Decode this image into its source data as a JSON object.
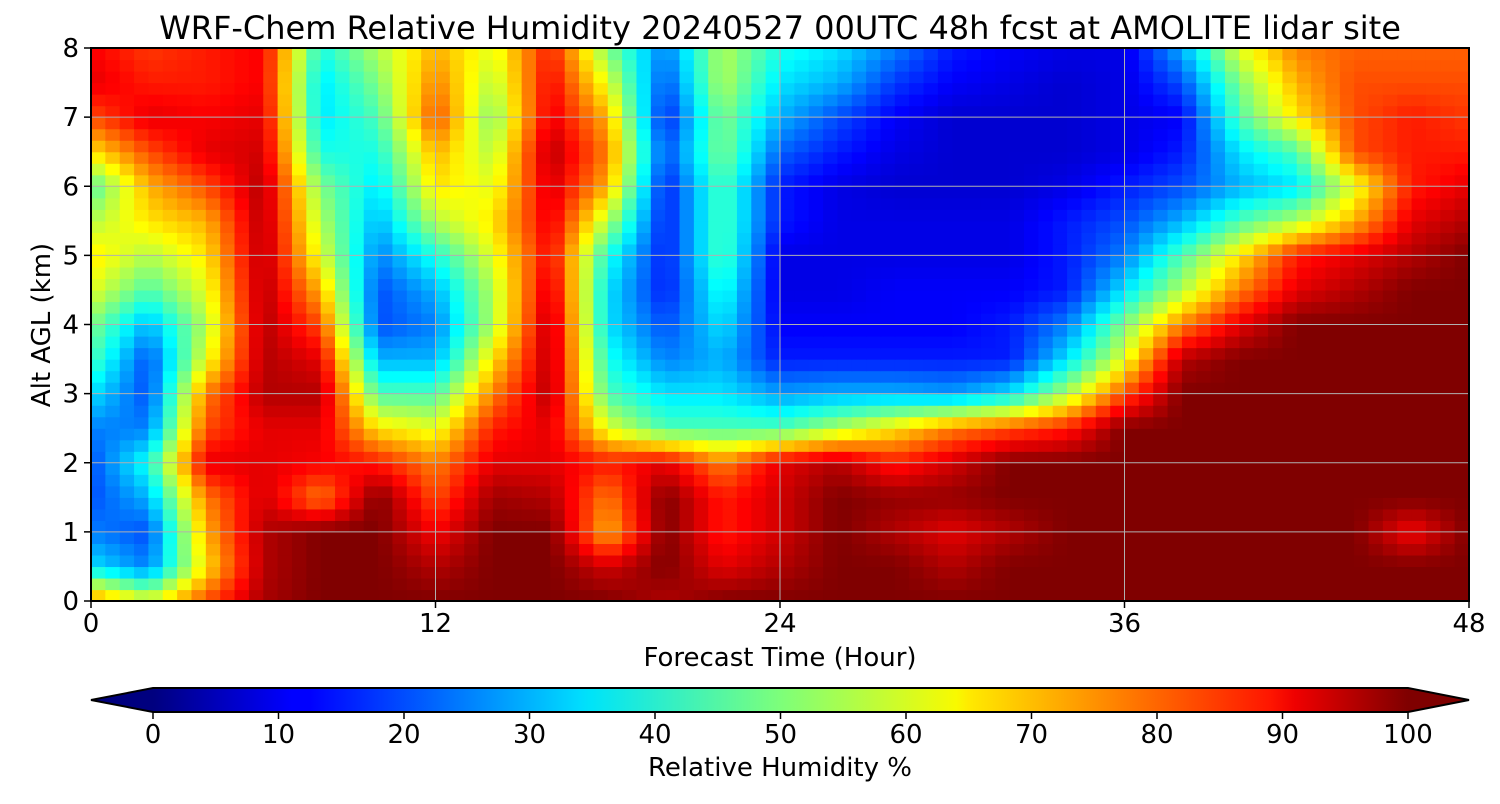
{
  "chart_data": {
    "type": "heatmap",
    "title": "WRF-Chem Relative Humidity 20240527 00UTC 48h fcst at AMOLITE lidar site",
    "xlabel": "Forecast Time (Hour)",
    "ylabel": "Alt AGL (km)",
    "xlim": [
      0,
      48
    ],
    "ylim": [
      0,
      8
    ],
    "x_ticks": [
      "0",
      "12",
      "24",
      "36",
      "48"
    ],
    "y_ticks": [
      "0",
      "1",
      "2",
      "3",
      "4",
      "5",
      "6",
      "7",
      "8"
    ],
    "grid": true,
    "colormap": "jet",
    "colorbar": {
      "label": "Relative Humidity %",
      "range": [
        0,
        100
      ],
      "ticks": [
        "0",
        "10",
        "20",
        "30",
        "40",
        "50",
        "60",
        "70",
        "80",
        "90",
        "100"
      ],
      "extend": "both",
      "orientation": "horizontal"
    },
    "x": [
      0,
      2,
      4,
      6,
      8,
      10,
      12,
      14,
      16,
      18,
      20,
      22,
      24,
      26,
      28,
      30,
      32,
      34,
      36,
      38,
      40,
      42,
      44,
      46,
      48
    ],
    "y": [
      0,
      0.5,
      1,
      1.5,
      2,
      2.5,
      3,
      3.5,
      4,
      4.5,
      5,
      5.5,
      6,
      6.5,
      7,
      7.5,
      8
    ],
    "z": [
      [
        75,
        60,
        80,
        96,
        100,
        100,
        100,
        100,
        100,
        100,
        95,
        100,
        100,
        100,
        100,
        100,
        100,
        100,
        100,
        100,
        100,
        100,
        100,
        100,
        100
      ],
      [
        35,
        25,
        65,
        95,
        100,
        100,
        95,
        100,
        100,
        92,
        100,
        90,
        95,
        100,
        100,
        95,
        100,
        100,
        100,
        100,
        100,
        100,
        100,
        100,
        100
      ],
      [
        25,
        20,
        70,
        95,
        100,
        100,
        88,
        100,
        100,
        70,
        100,
        85,
        92,
        100,
        95,
        90,
        95,
        100,
        100,
        100,
        100,
        100,
        100,
        88,
        100
      ],
      [
        20,
        30,
        75,
        92,
        75,
        100,
        80,
        97,
        95,
        75,
        100,
        85,
        92,
        100,
        98,
        98,
        100,
        100,
        100,
        100,
        100,
        100,
        100,
        100,
        100
      ],
      [
        20,
        40,
        90,
        90,
        88,
        85,
        75,
        90,
        90,
        85,
        90,
        75,
        90,
        95,
        85,
        92,
        100,
        100,
        100,
        100,
        100,
        100,
        100,
        100,
        100
      ],
      [
        25,
        25,
        80,
        90,
        90,
        65,
        60,
        85,
        90,
        60,
        45,
        45,
        45,
        55,
        65,
        75,
        80,
        85,
        100,
        100,
        100,
        100,
        100,
        100,
        100
      ],
      [
        35,
        20,
        75,
        95,
        95,
        45,
        45,
        75,
        95,
        45,
        35,
        35,
        28,
        30,
        30,
        28,
        35,
        55,
        80,
        100,
        100,
        100,
        100,
        100,
        100
      ],
      [
        45,
        20,
        60,
        95,
        90,
        30,
        30,
        65,
        95,
        40,
        25,
        30,
        15,
        15,
        15,
        15,
        15,
        35,
        60,
        95,
        100,
        100,
        100,
        100,
        100
      ],
      [
        50,
        30,
        55,
        95,
        80,
        20,
        25,
        55,
        95,
        35,
        20,
        35,
        12,
        12,
        12,
        12,
        15,
        25,
        50,
        75,
        90,
        100,
        100,
        100,
        100
      ],
      [
        60,
        45,
        60,
        95,
        70,
        20,
        30,
        55,
        92,
        35,
        15,
        40,
        10,
        10,
        12,
        12,
        12,
        15,
        35,
        55,
        75,
        90,
        95,
        100,
        100
      ],
      [
        65,
        55,
        65,
        95,
        60,
        25,
        40,
        60,
        88,
        40,
        15,
        45,
        10,
        10,
        10,
        10,
        10,
        15,
        25,
        45,
        65,
        85,
        90,
        95,
        100
      ],
      [
        55,
        65,
        70,
        95,
        55,
        30,
        55,
        65,
        90,
        55,
        15,
        45,
        15,
        10,
        10,
        10,
        10,
        15,
        20,
        30,
        45,
        55,
        70,
        90,
        95
      ],
      [
        45,
        70,
        80,
        95,
        50,
        35,
        65,
        60,
        92,
        70,
        15,
        45,
        15,
        10,
        8,
        8,
        8,
        10,
        15,
        20,
        30,
        35,
        60,
        85,
        90
      ],
      [
        65,
        80,
        90,
        92,
        40,
        40,
        70,
        55,
        95,
        75,
        20,
        50,
        22,
        15,
        10,
        8,
        8,
        8,
        10,
        15,
        35,
        45,
        80,
        85,
        85
      ],
      [
        80,
        90,
        88,
        90,
        35,
        45,
        80,
        50,
        90,
        70,
        15,
        50,
        30,
        20,
        12,
        8,
        8,
        8,
        10,
        12,
        45,
        65,
        80,
        85,
        82
      ],
      [
        90,
        85,
        85,
        88,
        35,
        50,
        75,
        55,
        88,
        60,
        20,
        55,
        35,
        30,
        18,
        12,
        10,
        8,
        10,
        20,
        50,
        70,
        80,
        80,
        80
      ],
      [
        88,
        82,
        85,
        88,
        40,
        55,
        70,
        60,
        85,
        50,
        25,
        55,
        40,
        35,
        25,
        15,
        12,
        10,
        10,
        30,
        60,
        75,
        78,
        78,
        78
      ]
    ]
  }
}
